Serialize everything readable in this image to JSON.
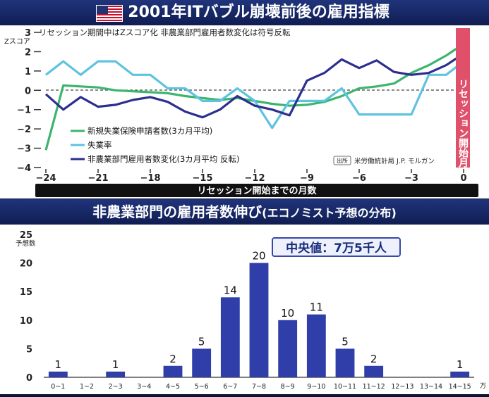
{
  "top": {
    "title": "2001年ITバブル崩壊前後の雇用指標",
    "subtitle": "リセッション期間中はZスコア化  非農業部門雇用者数変化は符号反転",
    "ylabel": "Zスコア",
    "xlabel_bar": "リセッション開始までの月数",
    "recession_label": "リセッション開始月",
    "source_tag": "出所",
    "source_text": "米労働統計局  J.P. モルガン",
    "colors": {
      "claims": "#3bb56e",
      "unemployment": "#5ec3e0",
      "payrolls": "#2c2f8e",
      "recession": "#e0506a"
    }
  },
  "bottom": {
    "title": "非農業部門の雇用者数伸び",
    "title_suffix": "(エコノミスト予想の分布)",
    "ylabel": "予想数",
    "callout": "中央値：7万5千人",
    "unit": "万"
  },
  "chart_data": [
    {
      "type": "line",
      "title": "2001年ITバブル崩壊前後の雇用指標",
      "subtitle": "リセッション期間中はZスコア化  非農業部門雇用者数変化は符号反転",
      "xlabel": "リセッション開始までの月数",
      "ylabel": "Zスコア",
      "xlim": [
        -24,
        0
      ],
      "ylim": [
        -4,
        3
      ],
      "xticks": [
        -24,
        -21,
        -18,
        -15,
        -12,
        -9,
        -6,
        -3,
        0
      ],
      "yticks": [
        -4,
        -3,
        -2,
        -1,
        0,
        1,
        2,
        3
      ],
      "legend_position": "bottom-left",
      "grid": false,
      "x": [
        -24,
        -23,
        -22,
        -21,
        -20,
        -19,
        -18,
        -17,
        -16,
        -15,
        -14,
        -13,
        -12,
        -11,
        -10,
        -9,
        -8,
        -7,
        -6,
        -5,
        -4,
        -3,
        -2,
        -1,
        0
      ],
      "series": [
        {
          "name": "新規失業保険申請者数(3カ月平均)",
          "key": "claims",
          "values": [
            -3.1,
            0.25,
            0.2,
            0.15,
            0.0,
            -0.05,
            -0.1,
            -0.15,
            -0.3,
            -0.4,
            -0.5,
            -0.4,
            -0.55,
            -0.7,
            -0.8,
            -0.75,
            -0.6,
            -0.3,
            0.1,
            0.2,
            0.35,
            0.9,
            1.3,
            1.8,
            2.4
          ]
        },
        {
          "name": "失業率",
          "key": "unemployment",
          "values": [
            0.8,
            1.5,
            0.8,
            1.5,
            1.5,
            0.8,
            0.8,
            0.1,
            0.1,
            -0.55,
            -0.55,
            0.1,
            -0.55,
            -1.95,
            -0.55,
            -0.55,
            -0.55,
            0.1,
            -1.25,
            -1.25,
            -1.25,
            -1.25,
            0.8,
            0.8,
            1.5
          ]
        },
        {
          "name": "非農業部門雇用者数変化(3カ月平均 反転)",
          "key": "payrolls",
          "values": [
            -0.2,
            -1.0,
            -0.35,
            -0.85,
            -0.75,
            -0.5,
            -0.35,
            -0.6,
            -1.1,
            -1.4,
            -1.0,
            -0.3,
            -0.8,
            -1.0,
            -1.3,
            0.5,
            0.9,
            1.6,
            1.15,
            1.55,
            0.95,
            0.8,
            0.9,
            1.3,
            1.9
          ]
        }
      ]
    },
    {
      "type": "bar",
      "title": "非農業部門の雇用者数伸び(エコノミスト予想の分布)",
      "ylabel": "予想数",
      "xunit": "万",
      "ylim": [
        0,
        25
      ],
      "yticks": [
        0,
        5,
        10,
        15,
        20,
        25
      ],
      "categories": [
        "0~1",
        "1~2",
        "2~3",
        "3~4",
        "4~5",
        "5~6",
        "6~7",
        "7~8",
        "8~9",
        "9~10",
        "10~11",
        "11~12",
        "12~13",
        "13~14",
        "14~15"
      ],
      "values": [
        1,
        0,
        1,
        0,
        2,
        5,
        14,
        20,
        10,
        11,
        5,
        2,
        0,
        0,
        1
      ],
      "annotation": "中央値：7万5千人",
      "bar_color": "#2f3ea8"
    }
  ]
}
